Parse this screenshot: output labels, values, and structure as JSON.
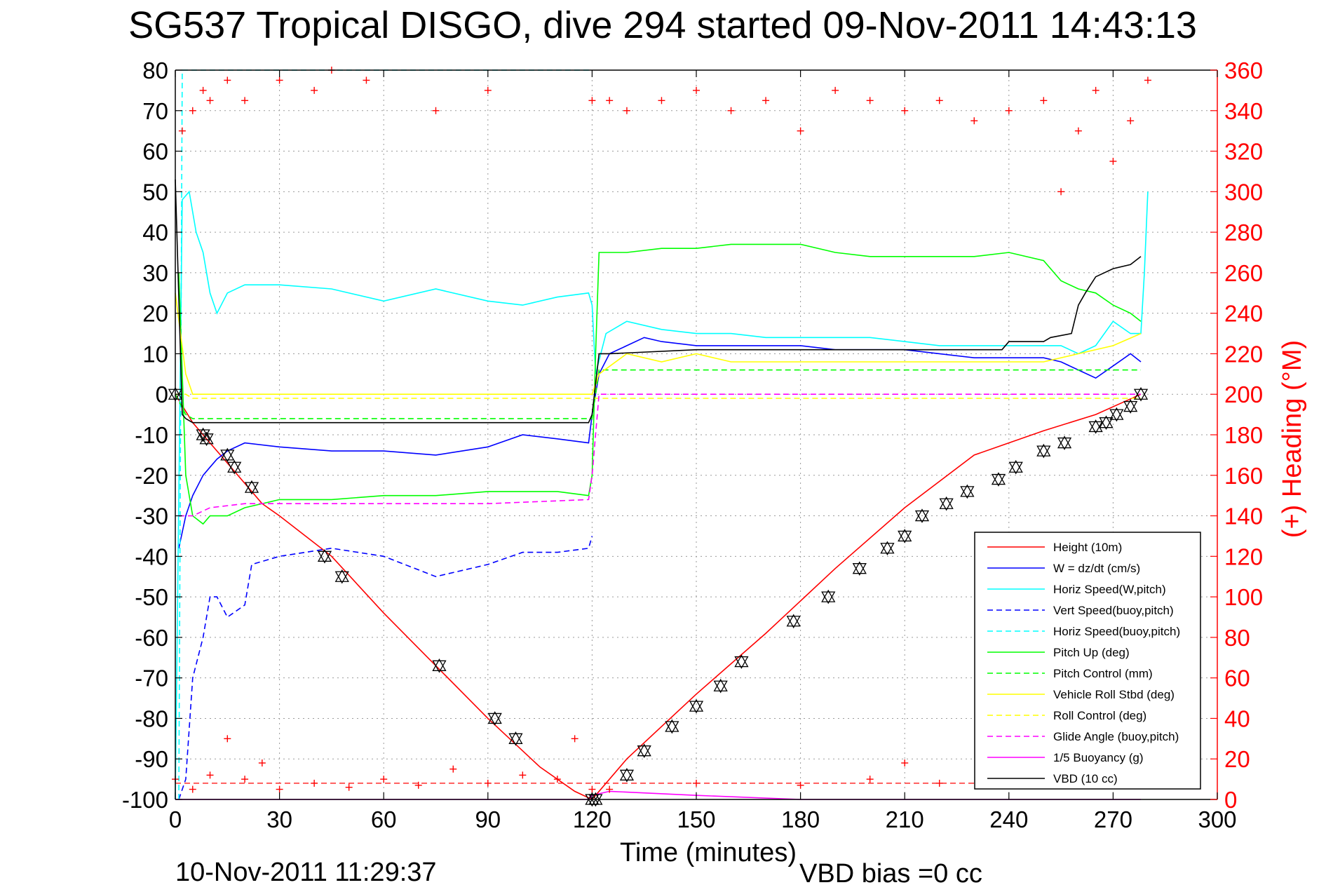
{
  "figure": {
    "title": "SG537 Tropical DISGO, dive 294 started 09-Nov-2011 14:43:13",
    "footer_left": "10-Nov-2011 11:29:37",
    "footer_right": "VBD bias =0 cc"
  },
  "chart_data": {
    "type": "line",
    "xlabel": "Time (minutes)",
    "ylabel": "",
    "y2label": "(+) Heading (°M)",
    "xlim": [
      0,
      300
    ],
    "ylim": [
      -100,
      80
    ],
    "y2lim": [
      0,
      360
    ],
    "xticks": [
      0,
      30,
      60,
      90,
      120,
      150,
      180,
      210,
      240,
      270,
      300
    ],
    "yticks": [
      -100,
      -90,
      -80,
      -70,
      -60,
      -50,
      -40,
      -30,
      -20,
      -10,
      0,
      10,
      20,
      30,
      40,
      50,
      60,
      70,
      80
    ],
    "y2ticks": [
      0,
      20,
      40,
      60,
      80,
      100,
      120,
      140,
      160,
      180,
      200,
      220,
      240,
      260,
      280,
      300,
      320,
      340,
      360
    ],
    "grid": true,
    "legend_position": "bottom-right",
    "colors": {
      "height": "#ff0000",
      "w": "#0000ff",
      "horiz_speed_w": "#00ffff",
      "vert_speed_buoy": "#0000ff",
      "horiz_speed_buoy": "#00ffff",
      "pitch_up": "#00ff00",
      "pitch_control": "#00ff00",
      "roll": "#ffff00",
      "roll_control": "#ffff00",
      "glide_angle": "#ff00ff",
      "buoyancy": "#ff00ff",
      "vbd": "#000000",
      "heading": "#ff0000",
      "right_axis": "#ff0000"
    },
    "series": [
      {
        "key": "height",
        "name": "Height (10m)",
        "style": "solid",
        "axis": "left",
        "x": [
          0,
          5,
          10,
          15,
          20,
          25,
          30,
          45,
          60,
          75,
          90,
          105,
          115,
          120,
          130,
          150,
          170,
          190,
          210,
          230,
          250,
          265,
          278
        ],
        "y": [
          0,
          -7,
          -12,
          -17,
          -22,
          -27,
          -30,
          -40,
          -54,
          -67,
          -80,
          -92,
          -98,
          -100,
          -90,
          -74,
          -59,
          -43,
          -28,
          -15,
          -9,
          -5,
          0
        ]
      },
      {
        "key": "w",
        "name": "W = dz/dt (cm/s)",
        "style": "solid",
        "axis": "left",
        "x": [
          1,
          3,
          5,
          8,
          10,
          12,
          15,
          20,
          30,
          45,
          60,
          75,
          90,
          100,
          110,
          119,
          120,
          122,
          125,
          130,
          135,
          140,
          150,
          160,
          170,
          180,
          190,
          200,
          210,
          220,
          230,
          240,
          250,
          255,
          260,
          265,
          270,
          275,
          278
        ],
        "y": [
          -38,
          -30,
          -25,
          -20,
          -18,
          -16,
          -14,
          -12,
          -13,
          -14,
          -14,
          -15,
          -13,
          -10,
          -11,
          -12,
          -5,
          5,
          10,
          12,
          14,
          13,
          12,
          12,
          12,
          12,
          11,
          11,
          11,
          10,
          9,
          9,
          9,
          8,
          6,
          4,
          7,
          10,
          8
        ]
      },
      {
        "key": "horiz_speed_w",
        "name": "Horiz Speed(W,pitch)",
        "style": "solid",
        "axis": "left",
        "x": [
          0,
          2,
          4,
          6,
          8,
          10,
          12,
          15,
          20,
          30,
          45,
          60,
          75,
          90,
          100,
          110,
          119,
          120,
          121,
          124,
          130,
          140,
          150,
          160,
          170,
          180,
          190,
          200,
          210,
          220,
          230,
          240,
          250,
          255,
          260,
          265,
          270,
          275,
          278,
          279,
          280
        ],
        "y": [
          -100,
          48,
          50,
          40,
          35,
          25,
          20,
          25,
          27,
          27,
          26,
          23,
          26,
          23,
          22,
          24,
          25,
          22,
          5,
          15,
          18,
          16,
          15,
          15,
          14,
          14,
          14,
          14,
          13,
          12,
          12,
          12,
          12,
          12,
          10,
          12,
          18,
          15,
          15,
          30,
          50
        ]
      },
      {
        "key": "vert_speed_buoy",
        "name": "Vert Speed(buoy,pitch)",
        "style": "dashed",
        "axis": "left",
        "x": [
          1,
          3,
          5,
          8,
          10,
          12,
          15,
          20,
          22,
          30,
          45,
          60,
          75,
          90,
          100,
          110,
          119,
          120
        ],
        "y": [
          -100,
          -95,
          -70,
          -60,
          -50,
          -50,
          -55,
          -52,
          -42,
          -40,
          -38,
          -40,
          -45,
          -42,
          -39,
          -39,
          -38,
          -35
        ]
      },
      {
        "key": "horiz_speed_buoy",
        "name": "Horiz Speed(buoy,pitch)",
        "style": "dashed",
        "axis": "left",
        "x": [
          1,
          2,
          3,
          5,
          10,
          30,
          60,
          90,
          119,
          120
        ],
        "y": [
          -100,
          80,
          80,
          80,
          80,
          80,
          80,
          80,
          80,
          80
        ]
      },
      {
        "key": "pitch_up",
        "name": "Pitch Up (deg)",
        "style": "solid",
        "axis": "left",
        "x": [
          1,
          3,
          5,
          8,
          10,
          15,
          20,
          30,
          45,
          60,
          75,
          90,
          100,
          110,
          119,
          120,
          121,
          122,
          130,
          140,
          150,
          160,
          170,
          180,
          190,
          200,
          210,
          220,
          230,
          240,
          250,
          255,
          260,
          265,
          270,
          275,
          278
        ],
        "y": [
          30,
          -20,
          -30,
          -32,
          -30,
          -30,
          -28,
          -26,
          -26,
          -25,
          -25,
          -24,
          -24,
          -24,
          -25,
          -20,
          10,
          35,
          35,
          36,
          36,
          37,
          37,
          37,
          35,
          34,
          34,
          34,
          34,
          35,
          33,
          28,
          26,
          25,
          22,
          20,
          18
        ]
      },
      {
        "key": "pitch_control",
        "name": "Pitch Control (mm)",
        "style": "dashed",
        "axis": "left",
        "x": [
          0,
          3,
          5,
          10,
          30,
          60,
          90,
          120,
          122,
          150,
          180,
          210,
          240,
          270,
          278
        ],
        "y": [
          0,
          -5,
          -6,
          -6,
          -6,
          -6,
          -6,
          -6,
          6,
          6,
          6,
          6,
          6,
          6,
          6
        ]
      },
      {
        "key": "roll",
        "name": "Vehicle Roll Stbd (deg)",
        "style": "solid",
        "axis": "left",
        "x": [
          0,
          3,
          5,
          10,
          20,
          30,
          45,
          60,
          75,
          90,
          100,
          110,
          120,
          122,
          130,
          140,
          150,
          160,
          170,
          180,
          190,
          200,
          210,
          220,
          230,
          240,
          250,
          260,
          270,
          278
        ],
        "y": [
          25,
          5,
          0,
          0,
          0,
          0,
          0,
          0,
          0,
          0,
          0,
          0,
          0,
          5,
          10,
          8,
          10,
          8,
          8,
          8,
          8,
          8,
          8,
          8,
          8,
          8,
          8,
          10,
          12,
          15
        ]
      },
      {
        "key": "roll_control",
        "name": "Roll Control (deg)",
        "style": "dashed",
        "axis": "left",
        "x": [
          0,
          3,
          5,
          30,
          60,
          90,
          120,
          122,
          150,
          180,
          210,
          240,
          270,
          278
        ],
        "y": [
          0,
          0,
          -1,
          -1,
          -1,
          -1,
          -1,
          -1,
          -1,
          -1,
          -1,
          -1,
          -1,
          -1
        ]
      },
      {
        "key": "glide_angle",
        "name": "Glide Angle (buoy,pitch)",
        "style": "dashed",
        "axis": "left",
        "x": [
          1,
          5,
          10,
          20,
          30,
          60,
          90,
          119,
          120,
          122,
          150,
          180,
          210,
          240,
          270,
          278
        ],
        "y": [
          -30,
          -30,
          -28,
          -27,
          -27,
          -27,
          -27,
          -26,
          -20,
          0,
          0,
          0,
          0,
          0,
          0,
          0
        ]
      },
      {
        "key": "buoyancy",
        "name": "1/5 Buoyancy (g)",
        "style": "solid",
        "axis": "left",
        "x": [
          0,
          5,
          30,
          60,
          90,
          119,
          120,
          125,
          150,
          180,
          210,
          240,
          270,
          278
        ],
        "y": [
          -100,
          -100,
          -100,
          -100,
          -100,
          -100,
          -99,
          -98,
          -99,
          -100,
          -100,
          -100,
          -100,
          -100
        ]
      },
      {
        "key": "vbd",
        "name": "VBD (10 cc)",
        "style": "solid",
        "axis": "left",
        "x": [
          0,
          2,
          3,
          5,
          8,
          30,
          60,
          90,
          100,
          119,
          120,
          122,
          125,
          150,
          180,
          210,
          230,
          238,
          240,
          242,
          250,
          252,
          258,
          260,
          262,
          265,
          270,
          275,
          278
        ],
        "y": [
          53,
          -5,
          -6,
          -7,
          -7,
          -7,
          -7,
          -7,
          -7,
          -7,
          -5,
          10,
          10,
          11,
          11,
          11,
          11,
          11,
          13,
          13,
          13,
          14,
          15,
          22,
          25,
          29,
          31,
          32,
          34
        ]
      }
    ],
    "heading": {
      "name": "(+) Heading (°M)",
      "axis": "right",
      "marker": "+",
      "top_band_x": [
        2,
        5,
        8,
        10,
        15,
        20,
        30,
        40,
        45,
        55,
        75,
        90,
        120,
        125,
        130,
        140,
        150,
        160,
        170,
        180,
        190,
        200,
        210,
        220,
        230,
        240,
        250,
        255,
        260,
        265,
        270,
        275,
        280
      ],
      "top_band_y": [
        330,
        340,
        350,
        345,
        355,
        345,
        355,
        350,
        360,
        355,
        340,
        350,
        345,
        345,
        340,
        345,
        350,
        340,
        345,
        330,
        350,
        345,
        340,
        345,
        335,
        340,
        345,
        300,
        330,
        350,
        315,
        335,
        355
      ],
      "bottom_band_x": [
        0,
        5,
        10,
        15,
        20,
        25,
        30,
        40,
        50,
        60,
        70,
        80,
        90,
        100,
        110,
        115,
        120,
        125,
        150,
        180,
        200,
        210,
        220,
        240,
        260,
        270,
        280
      ],
      "bottom_band_y": [
        10,
        5,
        12,
        30,
        10,
        18,
        5,
        8,
        6,
        10,
        7,
        15,
        8,
        12,
        10,
        30,
        5,
        5,
        8,
        7,
        10,
        18,
        8,
        7,
        9,
        8,
        10
      ]
    },
    "drift_reference_y2": 8,
    "markers": {
      "symbol": "triangles",
      "x": [
        0,
        8,
        9,
        15,
        17,
        22,
        43,
        48,
        76,
        92,
        98,
        120,
        121,
        130,
        135,
        143,
        150,
        157,
        163,
        178,
        188,
        197,
        205,
        210,
        215,
        222,
        228,
        237,
        242,
        250,
        256,
        265,
        268,
        271,
        275,
        278
      ],
      "y": [
        0,
        -10,
        -11,
        -15,
        -18,
        -23,
        -40,
        -45,
        -67,
        -80,
        -85,
        -100,
        -100,
        -94,
        -88,
        -82,
        -77,
        -72,
        -66,
        -56,
        -50,
        -43,
        -38,
        -35,
        -30,
        -27,
        -24,
        -21,
        -18,
        -14,
        -12,
        -8,
        -7,
        -5,
        -3,
        0
      ]
    }
  }
}
